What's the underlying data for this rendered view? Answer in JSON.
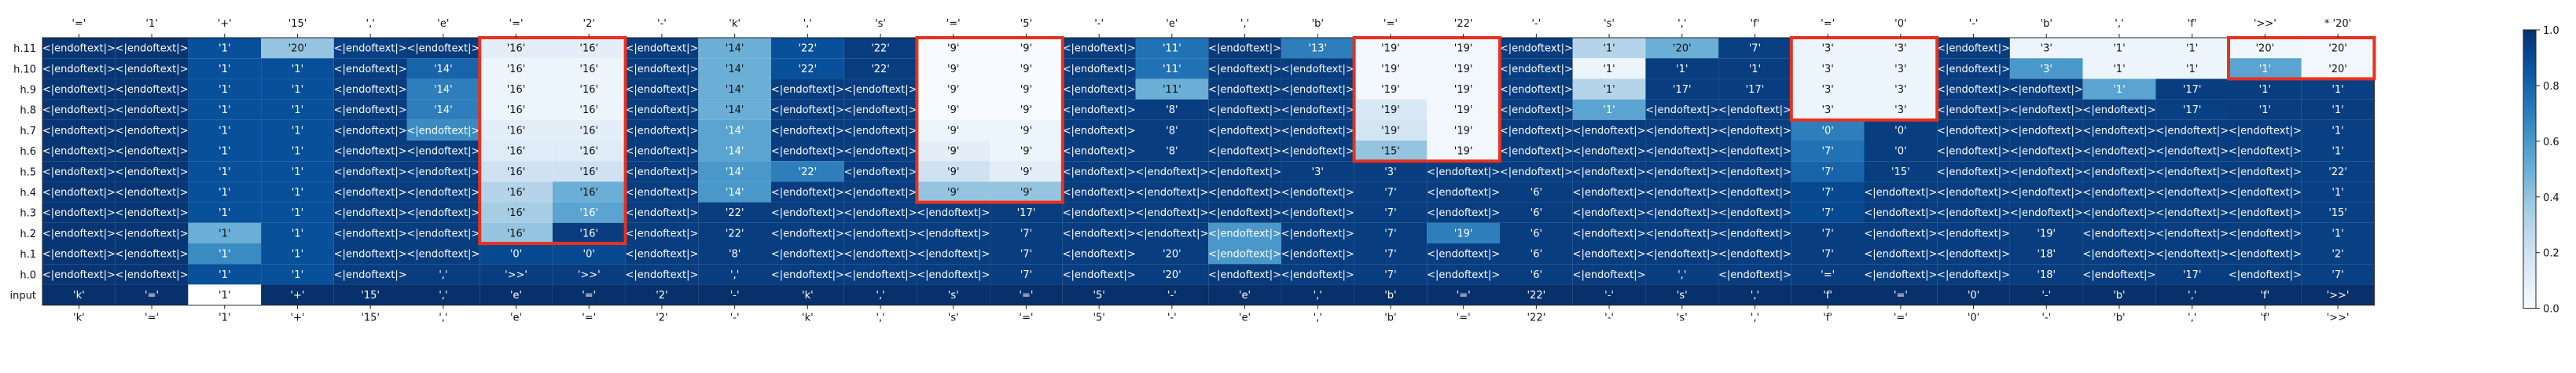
{
  "chart_data": {
    "type": "heatmap",
    "colormap": "Blues",
    "colorbar": {
      "min": 0.0,
      "max": 1.0,
      "ticks": [
        "0.0",
        "0.2",
        "0.4",
        "0.6",
        "0.8",
        "1.0"
      ]
    },
    "top_tick_labels": [
      "'='",
      "'1'",
      "'+'",
      "'15'",
      "','",
      "'e'",
      "'='",
      "'2'",
      "'-'",
      "'k'",
      "','",
      "'s'",
      "'='",
      "'5'",
      "'-'",
      "'e'",
      "','",
      "'b'",
      "'='",
      "'22'",
      "'-'",
      "'s'",
      "','",
      "'f'",
      "'='",
      "'0'",
      "'-'",
      "'b'",
      "','",
      "'f'",
      "'>>'",
      "* '20'"
    ],
    "bottom_tick_labels": [
      "'k'",
      "'='",
      "'1'",
      "'+'",
      "'15'",
      "','",
      "'e'",
      "'='",
      "'2'",
      "'-'",
      "'k'",
      "','",
      "'s'",
      "'='",
      "'5'",
      "'-'",
      "'e'",
      "','",
      "'b'",
      "'='",
      "'22'",
      "'-'",
      "'s'",
      "','",
      "'f'",
      "'='",
      "'0'",
      "'-'",
      "'b'",
      "','",
      "'f'",
      "'>>'"
    ],
    "row_labels": [
      "h.11",
      "h.10",
      "h.9",
      "h.8",
      "h.7",
      "h.6",
      "h.5",
      "h.4",
      "h.3",
      "h.2",
      "h.1",
      "h.0",
      "input"
    ],
    "cells": [
      [
        "<|endoftext|>",
        "<|endoftext|>",
        "'1'",
        "'20'",
        "<|endoftext|>",
        "<|endoftext|>",
        "'16'",
        "'16'",
        "<|endoftext|>",
        "'14'",
        "'22'",
        "'22'",
        "'9'",
        "'9'",
        "<|endoftext|>",
        "'11'",
        "<|endoftext|>",
        "'13'",
        "'19'",
        "'19'",
        "<|endoftext|>",
        "'1'",
        "'20'",
        "'7'",
        "'3'",
        "'3'",
        "<|endoftext|>",
        "'3'",
        "'1'",
        "'1'",
        "'20'",
        "'20'"
      ],
      [
        "<|endoftext|>",
        "<|endoftext|>",
        "'1'",
        "'1'",
        "<|endoftext|>",
        "'14'",
        "'16'",
        "'16'",
        "<|endoftext|>",
        "'14'",
        "'22'",
        "'22'",
        "'9'",
        "'9'",
        "<|endoftext|>",
        "'11'",
        "<|endoftext|>",
        "<|endoftext|>",
        "'19'",
        "'19'",
        "<|endoftext|>",
        "'1'",
        "'1'",
        "'1'",
        "'3'",
        "'3'",
        "<|endoftext|>",
        "'3'",
        "'1'",
        "'1'",
        "'1'",
        "'20'"
      ],
      [
        "<|endoftext|>",
        "<|endoftext|>",
        "'1'",
        "'1'",
        "<|endoftext|>",
        "'14'",
        "'16'",
        "'16'",
        "<|endoftext|>",
        "'14'",
        "<|endoftext|>",
        "<|endoftext|>",
        "'9'",
        "'9'",
        "<|endoftext|>",
        "'11'",
        "<|endoftext|>",
        "<|endoftext|>",
        "'19'",
        "'19'",
        "<|endoftext|>",
        "'1'",
        "'17'",
        "'17'",
        "'3'",
        "'3'",
        "<|endoftext|>",
        "<|endoftext|>",
        "'1'",
        "'17'",
        "'1'",
        "'1'"
      ],
      [
        "<|endoftext|>",
        "<|endoftext|>",
        "'1'",
        "'1'",
        "<|endoftext|>",
        "'14'",
        "'16'",
        "'16'",
        "<|endoftext|>",
        "'14'",
        "<|endoftext|>",
        "<|endoftext|>",
        "'9'",
        "'9'",
        "<|endoftext|>",
        "'8'",
        "<|endoftext|>",
        "<|endoftext|>",
        "'19'",
        "'19'",
        "<|endoftext|>",
        "'1'",
        "<|endoftext|>",
        "<|endoftext|>",
        "'3'",
        "'3'",
        "<|endoftext|>",
        "<|endoftext|>",
        "<|endoftext|>",
        "'17'",
        "'1'",
        "'1'"
      ],
      [
        "<|endoftext|>",
        "<|endoftext|>",
        "'1'",
        "'1'",
        "<|endoftext|>",
        "<|endoftext|>",
        "'16'",
        "'16'",
        "<|endoftext|>",
        "'14'",
        "<|endoftext|>",
        "<|endoftext|>",
        "'9'",
        "'9'",
        "<|endoftext|>",
        "'8'",
        "<|endoftext|>",
        "<|endoftext|>",
        "'19'",
        "'19'",
        "<|endoftext|>",
        "<|endoftext|>",
        "<|endoftext|>",
        "<|endoftext|>",
        "'0'",
        "'0'",
        "<|endoftext|>",
        "<|endoftext|>",
        "<|endoftext|>",
        "<|endoftext|>",
        "<|endoftext|>",
        "'1'"
      ],
      [
        "<|endoftext|>",
        "<|endoftext|>",
        "'1'",
        "'1'",
        "<|endoftext|>",
        "<|endoftext|>",
        "'16'",
        "'16'",
        "<|endoftext|>",
        "'14'",
        "<|endoftext|>",
        "<|endoftext|>",
        "'9'",
        "'9'",
        "<|endoftext|>",
        "'8'",
        "<|endoftext|>",
        "<|endoftext|>",
        "'15'",
        "'19'",
        "<|endoftext|>",
        "<|endoftext|>",
        "<|endoftext|>",
        "<|endoftext|>",
        "'7'",
        "'0'",
        "<|endoftext|>",
        "<|endoftext|>",
        "<|endoftext|>",
        "<|endoftext|>",
        "<|endoftext|>",
        "'1'"
      ],
      [
        "<|endoftext|>",
        "<|endoftext|>",
        "'1'",
        "'1'",
        "<|endoftext|>",
        "<|endoftext|>",
        "'16'",
        "'16'",
        "<|endoftext|>",
        "'14'",
        "'22'",
        "<|endoftext|>",
        "'9'",
        "'9'",
        "<|endoftext|>",
        "<|endoftext|>",
        "<|endoftext|>",
        "'3'",
        "'3'",
        "<|endoftext|>",
        "<|endoftext|>",
        "<|endoftext|>",
        "<|endoftext|>",
        "<|endoftext|>",
        "'7'",
        "'15'",
        "<|endoftext|>",
        "<|endoftext|>",
        "<|endoftext|>",
        "<|endoftext|>",
        "<|endoftext|>",
        "'22'"
      ],
      [
        "<|endoftext|>",
        "<|endoftext|>",
        "'1'",
        "'1'",
        "<|endoftext|>",
        "<|endoftext|>",
        "'16'",
        "'16'",
        "<|endoftext|>",
        "'14'",
        "<|endoftext|>",
        "<|endoftext|>",
        "'9'",
        "'9'",
        "<|endoftext|>",
        "<|endoftext|>",
        "<|endoftext|>",
        "<|endoftext|>",
        "'7'",
        "<|endoftext|>",
        "'6'",
        "<|endoftext|>",
        "<|endoftext|>",
        "<|endoftext|>",
        "'7'",
        "<|endoftext|>",
        "<|endoftext|>",
        "<|endoftext|>",
        "<|endoftext|>",
        "<|endoftext|>",
        "<|endoftext|>",
        "'1'"
      ],
      [
        "<|endoftext|>",
        "<|endoftext|>",
        "'1'",
        "'1'",
        "<|endoftext|>",
        "<|endoftext|>",
        "'16'",
        "'16'",
        "<|endoftext|>",
        "'22'",
        "<|endoftext|>",
        "<|endoftext|>",
        "<|endoftext|>",
        "'17'",
        "<|endoftext|>",
        "<|endoftext|>",
        "<|endoftext|>",
        "<|endoftext|>",
        "'7'",
        "<|endoftext|>",
        "'6'",
        "<|endoftext|>",
        "<|endoftext|>",
        "<|endoftext|>",
        "'7'",
        "<|endoftext|>",
        "<|endoftext|>",
        "<|endoftext|>",
        "<|endoftext|>",
        "<|endoftext|>",
        "<|endoftext|>",
        "'15'"
      ],
      [
        "<|endoftext|>",
        "<|endoftext|>",
        "'1'",
        "'1'",
        "<|endoftext|>",
        "<|endoftext|>",
        "'16'",
        "'16'",
        "<|endoftext|>",
        "'22'",
        "<|endoftext|>",
        "<|endoftext|>",
        "<|endoftext|>",
        "'7'",
        "<|endoftext|>",
        "<|endoftext|>",
        "<|endoftext|>",
        "<|endoftext|>",
        "'7'",
        "'19'",
        "'6'",
        "<|endoftext|>",
        "<|endoftext|>",
        "<|endoftext|>",
        "'7'",
        "<|endoftext|>",
        "<|endoftext|>",
        "'19'",
        "<|endoftext|>",
        "<|endoftext|>",
        "<|endoftext|>",
        "'1'"
      ],
      [
        "<|endoftext|>",
        "<|endoftext|>",
        "'1'",
        "'1'",
        "<|endoftext|>",
        "<|endoftext|>",
        "'0'",
        "'0'",
        "<|endoftext|>",
        "'8'",
        "<|endoftext|>",
        "<|endoftext|>",
        "<|endoftext|>",
        "'7'",
        "<|endoftext|>",
        "'20'",
        "<|endoftext|>",
        "<|endoftext|>",
        "'7'",
        "<|endoftext|>",
        "'6'",
        "<|endoftext|>",
        "<|endoftext|>",
        "<|endoftext|>",
        "'7'",
        "<|endoftext|>",
        "<|endoftext|>",
        "'18'",
        "<|endoftext|>",
        "<|endoftext|>",
        "<|endoftext|>",
        "'2'"
      ],
      [
        "<|endoftext|>",
        "<|endoftext|>",
        "'1'",
        "'1'",
        "<|endoftext|>",
        "','",
        "'>>'",
        "'>>'",
        "<|endoftext|>",
        "','",
        "<|endoftext|>",
        "<|endoftext|>",
        "<|endoftext|>",
        "'7'",
        "<|endoftext|>",
        "'20'",
        "<|endoftext|>",
        "<|endoftext|>",
        "'7'",
        "<|endoftext|>",
        "'6'",
        "<|endoftext|>",
        "','",
        "<|endoftext|>",
        "'='",
        "<|endoftext|>",
        "<|endoftext|>",
        "'18'",
        "<|endoftext|>",
        "'17'",
        "<|endoftext|>",
        "'7'"
      ],
      [
        "'k'",
        "'='",
        "'1'",
        "'+'",
        "'15'",
        "','",
        "'e'",
        "'='",
        "'2'",
        "'-'",
        "'k'",
        "','",
        "'s'",
        "'='",
        "'5'",
        "'-'",
        "'e'",
        "','",
        "'b'",
        "'='",
        "'22'",
        "'-'",
        "'s'",
        "','",
        "'f'",
        "'='",
        "'0'",
        "'-'",
        "'b'",
        "','",
        "'f'",
        "'>>'"
      ]
    ],
    "intensity": [
      [
        0.02,
        0.02,
        0.12,
        0.6,
        0.06,
        0.04,
        0.9,
        0.9,
        0.05,
        0.5,
        0.12,
        0.05,
        1.0,
        1.0,
        0.05,
        0.25,
        0.04,
        0.3,
        0.98,
        0.97,
        0.05,
        0.7,
        0.5,
        0.06,
        0.95,
        0.95,
        0.05,
        0.95,
        0.95,
        0.95,
        0.96,
        0.97
      ],
      [
        0.02,
        0.02,
        0.12,
        0.12,
        0.05,
        0.2,
        0.95,
        0.95,
        0.05,
        0.5,
        0.12,
        0.05,
        1.0,
        1.0,
        0.05,
        0.25,
        0.04,
        0.05,
        0.98,
        0.97,
        0.05,
        0.95,
        0.05,
        0.05,
        0.95,
        0.95,
        0.05,
        0.4,
        0.95,
        0.95,
        0.45,
        0.97
      ],
      [
        0.02,
        0.02,
        0.12,
        0.12,
        0.05,
        0.3,
        0.95,
        0.95,
        0.05,
        0.5,
        0.05,
        0.05,
        1.0,
        1.0,
        0.05,
        0.5,
        0.04,
        0.05,
        0.98,
        0.97,
        0.05,
        0.7,
        0.05,
        0.05,
        0.95,
        0.95,
        0.05,
        0.05,
        0.45,
        0.05,
        0.05,
        0.06
      ],
      [
        0.02,
        0.02,
        0.12,
        0.12,
        0.05,
        0.3,
        0.95,
        0.95,
        0.05,
        0.5,
        0.05,
        0.05,
        1.0,
        1.0,
        0.05,
        0.05,
        0.04,
        0.05,
        0.85,
        0.97,
        0.05,
        0.45,
        0.05,
        0.05,
        0.95,
        0.95,
        0.05,
        0.05,
        0.05,
        0.06,
        0.05,
        0.05
      ],
      [
        0.02,
        0.02,
        0.12,
        0.12,
        0.05,
        0.35,
        0.9,
        0.9,
        0.05,
        0.45,
        0.05,
        0.05,
        0.95,
        0.95,
        0.05,
        0.05,
        0.04,
        0.05,
        0.82,
        0.97,
        0.05,
        0.05,
        0.05,
        0.05,
        0.3,
        0.05,
        0.05,
        0.05,
        0.05,
        0.05,
        0.05,
        0.06
      ],
      [
        0.02,
        0.02,
        0.12,
        0.12,
        0.05,
        0.05,
        0.88,
        0.88,
        0.05,
        0.45,
        0.05,
        0.05,
        0.9,
        0.95,
        0.05,
        0.05,
        0.04,
        0.05,
        0.6,
        0.97,
        0.05,
        0.05,
        0.05,
        0.05,
        0.25,
        0.05,
        0.05,
        0.05,
        0.05,
        0.05,
        0.05,
        0.06
      ],
      [
        0.02,
        0.02,
        0.12,
        0.12,
        0.05,
        0.05,
        0.8,
        0.8,
        0.05,
        0.4,
        0.3,
        0.05,
        0.8,
        0.9,
        0.05,
        0.05,
        0.04,
        0.05,
        0.05,
        0.05,
        0.05,
        0.05,
        0.05,
        0.05,
        0.2,
        0.05,
        0.05,
        0.05,
        0.05,
        0.05,
        0.05,
        0.06
      ],
      [
        0.02,
        0.02,
        0.12,
        0.12,
        0.05,
        0.05,
        0.7,
        0.5,
        0.05,
        0.4,
        0.05,
        0.05,
        0.6,
        0.6,
        0.05,
        0.05,
        0.04,
        0.05,
        0.05,
        0.05,
        0.05,
        0.05,
        0.05,
        0.05,
        0.1,
        0.05,
        0.05,
        0.05,
        0.05,
        0.05,
        0.05,
        0.06
      ],
      [
        0.02,
        0.02,
        0.12,
        0.12,
        0.05,
        0.05,
        0.65,
        0.45,
        0.05,
        0.05,
        0.05,
        0.05,
        0.05,
        0.05,
        0.05,
        0.05,
        0.04,
        0.05,
        0.05,
        0.05,
        0.05,
        0.05,
        0.05,
        0.05,
        0.1,
        0.05,
        0.05,
        0.05,
        0.05,
        0.05,
        0.05,
        0.06
      ],
      [
        0.02,
        0.02,
        0.5,
        0.12,
        0.05,
        0.05,
        0.6,
        0.05,
        0.05,
        0.05,
        0.05,
        0.05,
        0.05,
        0.05,
        0.05,
        0.05,
        0.4,
        0.05,
        0.05,
        0.3,
        0.05,
        0.05,
        0.05,
        0.05,
        0.05,
        0.05,
        0.05,
        0.05,
        0.05,
        0.05,
        0.05,
        0.06
      ],
      [
        0.02,
        0.02,
        0.35,
        0.12,
        0.05,
        0.05,
        0.1,
        0.1,
        0.05,
        0.05,
        0.05,
        0.05,
        0.05,
        0.05,
        0.05,
        0.05,
        0.4,
        0.05,
        0.05,
        0.05,
        0.05,
        0.05,
        0.05,
        0.05,
        0.05,
        0.05,
        0.05,
        0.05,
        0.05,
        0.05,
        0.05,
        0.06
      ],
      [
        0.02,
        0.02,
        0.12,
        0.12,
        0.05,
        0.05,
        0.05,
        0.05,
        0.05,
        0.05,
        0.05,
        0.05,
        0.05,
        0.05,
        0.05,
        0.05,
        0.04,
        0.05,
        0.05,
        0.05,
        0.05,
        0.05,
        0.05,
        0.05,
        0.05,
        0.05,
        0.05,
        0.05,
        0.05,
        0.05,
        0.05,
        0.06
      ],
      [
        0.0,
        0.0,
        0.0,
        0.0,
        0.0,
        0.0,
        0.0,
        0.0,
        0.0,
        0.0,
        0.0,
        0.0,
        0.0,
        0.0,
        0.0,
        0.0,
        0.0,
        0.0,
        0.0,
        0.0,
        0.0,
        0.0,
        0.0,
        0.0,
        0.0,
        0.0,
        0.0,
        0.0,
        0.0,
        0.0,
        0.0,
        0.0
      ]
    ],
    "highlight_boxes": [
      {
        "col_start": 6,
        "col_end": 7,
        "row_start": 0,
        "row_end": 9
      },
      {
        "col_start": 12,
        "col_end": 13,
        "row_start": 0,
        "row_end": 7
      },
      {
        "col_start": 18,
        "col_end": 19,
        "row_start": 0,
        "row_end": 5
      },
      {
        "col_start": 24,
        "col_end": 25,
        "row_start": 0,
        "row_end": 3
      },
      {
        "col_start": 30,
        "col_end": 31,
        "row_start": 0,
        "row_end": 1
      }
    ],
    "highlight_color": "#e8311e",
    "input_row_color": "#ffffff"
  }
}
